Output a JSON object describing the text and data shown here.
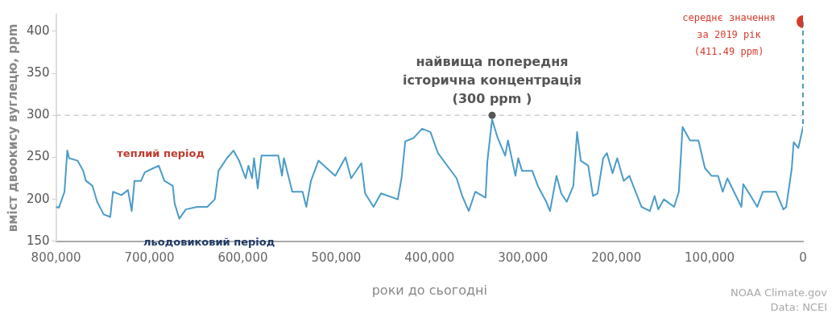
{
  "chart_data": {
    "type": "line",
    "xlabel": "роки до сьогодні",
    "ylabel": "вміст двоокису вуглецю, ppm",
    "xlim": [
      800000,
      0
    ],
    "xticks": [
      {
        "value": 800000,
        "label": "800,000"
      },
      {
        "value": 700000,
        "label": "700,000"
      },
      {
        "value": 600000,
        "label": "600,000"
      },
      {
        "value": 500000,
        "label": "500,000"
      },
      {
        "value": 400000,
        "label": "400,000"
      },
      {
        "value": 300000,
        "label": "300,000"
      },
      {
        "value": 200000,
        "label": "200,000"
      },
      {
        "value": 100000,
        "label": "100,000"
      },
      0
    ],
    "ylim": [
      150,
      420
    ],
    "yticks": [
      150,
      200,
      250,
      300,
      350,
      400
    ],
    "grid": false,
    "legend": false,
    "series": [
      {
        "color": "#4b9bc8",
        "marker": "none",
        "line_style": "solid",
        "x": [
          800000,
          797000,
          791000,
          788000,
          786000,
          777000,
          771000,
          768000,
          761000,
          756000,
          749000,
          742000,
          739000,
          730000,
          723000,
          719000,
          716000,
          709000,
          705000,
          696000,
          690000,
          684000,
          675000,
          673000,
          668000,
          661000,
          649000,
          638000,
          630000,
          626000,
          617000,
          610000,
          604000,
          597000,
          594000,
          590000,
          588000,
          584000,
          580000,
          568000,
          562000,
          558000,
          556000,
          547000,
          536000,
          532000,
          527000,
          519000,
          501000,
          490000,
          484000,
          473000,
          469000,
          460000,
          452000,
          434000,
          430000,
          426000,
          417000,
          408000,
          399000,
          391000,
          379000,
          371000,
          365000,
          358000,
          351000,
          340000,
          338000,
          333000,
          327000,
          319000,
          316000,
          308000,
          305000,
          301000,
          290000,
          284000,
          275000,
          271000,
          264000,
          259000,
          253000,
          246000,
          242000,
          238000,
          230000,
          225000,
          220000,
          214000,
          210000,
          204000,
          199000,
          192000,
          186000,
          173000,
          164000,
          159000,
          155000,
          149000,
          138000,
          133000,
          129000,
          121000,
          112000,
          105000,
          98000,
          91000,
          86000,
          81000,
          66000,
          64000,
          56000,
          49000,
          43000,
          29000,
          21000,
          18000,
          12000,
          10000,
          5000,
          0
        ],
        "values": [
          191,
          190,
          209,
          258,
          249,
          246,
          234,
          222,
          216,
          197,
          182,
          179,
          209,
          205,
          211,
          186,
          222,
          222,
          232,
          237,
          240,
          222,
          216,
          195,
          177,
          188,
          191,
          191,
          200,
          234,
          249,
          258,
          246,
          225,
          240,
          225,
          249,
          213,
          252,
          252,
          252,
          228,
          249,
          209,
          209,
          191,
          222,
          246,
          228,
          250,
          225,
          243,
          207,
          191,
          207,
          200,
          225,
          269,
          273,
          284,
          280,
          255,
          237,
          225,
          204,
          186,
          209,
          202,
          246,
          295,
          273,
          252,
          270,
          228,
          249,
          234,
          234,
          216,
          197,
          186,
          228,
          207,
          197,
          216,
          280,
          246,
          240,
          204,
          207,
          249,
          255,
          231,
          249,
          222,
          228,
          191,
          186,
          204,
          188,
          200,
          191,
          209,
          286,
          270,
          270,
          237,
          228,
          228,
          209,
          225,
          191,
          218,
          204,
          191,
          209,
          209,
          188,
          191,
          237,
          268,
          261,
          286
        ]
      },
      {
        "type": "scatter",
        "color": "#555555",
        "marker": "circle",
        "x": [
          333000
        ],
        "values": [
          300
        ]
      },
      {
        "type": "scatter",
        "color": "#d63a2c",
        "marker": "circle",
        "x": [
          0
        ],
        "values": [
          411.49
        ]
      }
    ],
    "ref_lines": [
      {
        "axis": "y",
        "value": 300,
        "color": "#cccccc",
        "line_style": "dashed"
      }
    ],
    "annotations": [
      {
        "text": "найвища попередня\nісторична концентрація\n(300 ppm )",
        "x": 333000,
        "y": 300
      },
      {
        "text": "середнє значення\nза 2019 рік\n(411.49 ppm)",
        "x": 0,
        "y": 411.49
      },
      "теплий період",
      "льодовиковий період",
      "NOAA Climate.gov\nData: NCEI"
    ]
  }
}
